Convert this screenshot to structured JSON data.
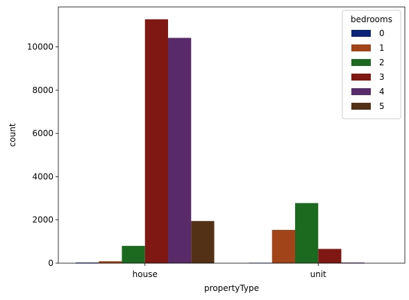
{
  "chart_data": {
    "type": "bar",
    "xlabel": "propertyType",
    "ylabel": "count",
    "categories": [
      "house",
      "unit"
    ],
    "ylim": [
      0,
      11850
    ],
    "yticks": [
      0,
      2000,
      4000,
      6000,
      8000,
      10000
    ],
    "legend": {
      "title": "bedrooms",
      "placement": "top-right"
    },
    "series": [
      {
        "name": "0",
        "color": "#0c2479",
        "values": [
          30,
          20
        ]
      },
      {
        "name": "1",
        "color": "#a1441a",
        "values": [
          90,
          1540
        ]
      },
      {
        "name": "2",
        "color": "#1b6a20",
        "values": [
          800,
          2780
        ]
      },
      {
        "name": "3",
        "color": "#7f1713",
        "values": [
          11280,
          660
        ]
      },
      {
        "name": "4",
        "color": "#582a69",
        "values": [
          10420,
          30
        ]
      },
      {
        "name": "5",
        "color": "#533117",
        "values": [
          1950,
          0
        ]
      }
    ]
  }
}
